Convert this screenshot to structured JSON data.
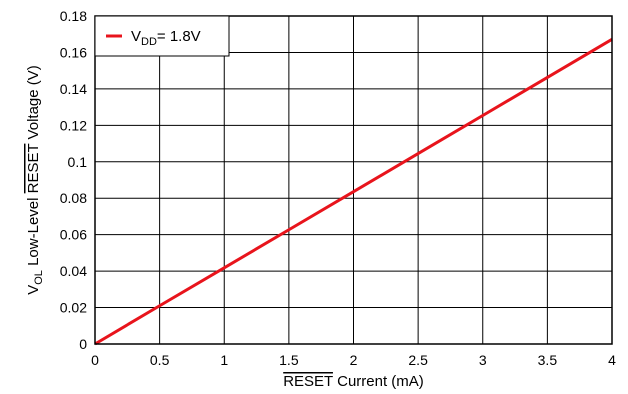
{
  "chart_data": {
    "type": "line",
    "title": "",
    "xlabel": {
      "overline": "RESET",
      "rest": " Current (mA)"
    },
    "ylabel": {
      "prefix": "V",
      "sub": "OL",
      "middle": " Low-Level ",
      "overline": "RESET",
      "rest": " Voltage (V)"
    },
    "xlim": [
      0,
      4
    ],
    "ylim": [
      0,
      0.18
    ],
    "xticks": [
      "0",
      "0.5",
      "1",
      "1.5",
      "2",
      "2.5",
      "3",
      "3.5",
      "4"
    ],
    "yticks": [
      "0",
      "0.02",
      "0.04",
      "0.06",
      "0.08",
      "0.1",
      "0.12",
      "0.14",
      "0.16",
      "0.18"
    ],
    "grid": true,
    "legend_position": "top-left",
    "series": [
      {
        "name": {
          "prefix": "V",
          "sub": "DD",
          "rest": "= 1.8V"
        },
        "color": "#e8141c",
        "x": [
          0,
          0.5,
          1,
          1.5,
          2,
          2.5,
          3,
          3.5,
          4
        ],
        "y": [
          0,
          0.021,
          0.0418,
          0.0627,
          0.0836,
          0.1045,
          0.1254,
          0.1463,
          0.1672
        ]
      }
    ]
  }
}
